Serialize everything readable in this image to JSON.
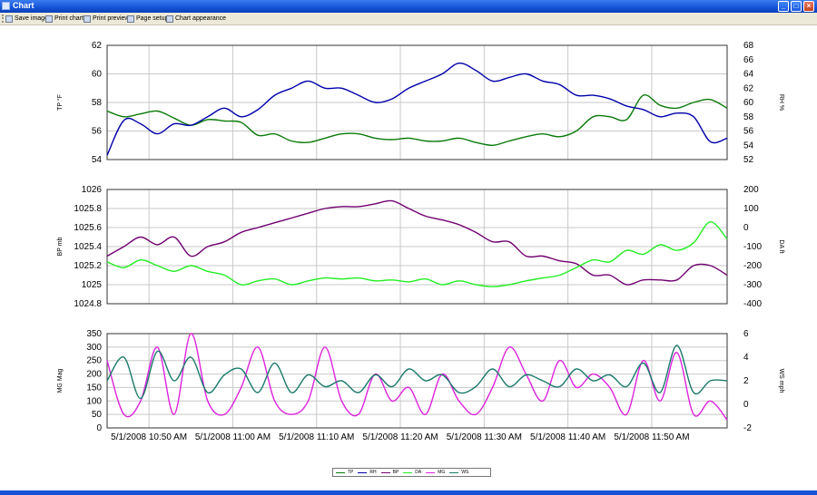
{
  "window": {
    "title": "Chart"
  },
  "toolbar": {
    "items": [
      {
        "label": "Save image",
        "icon": "save-icon"
      },
      {
        "label": "Print chart",
        "icon": "print-icon"
      },
      {
        "label": "Print preview",
        "icon": "print-preview-icon"
      },
      {
        "label": "Page setup",
        "icon": "page-setup-icon"
      },
      {
        "label": "Chart appearance",
        "icon": "chart-appearance-icon"
      }
    ]
  },
  "colors": {
    "TP": "#0a7a0a",
    "RH": "#0000aa",
    "BP": "#700070",
    "DA": "#22ee22",
    "MG": "#dd22dd",
    "WS": "#1a7a6a"
  },
  "chart_data": {
    "type": "line",
    "x_range": [
      "5/1/2008 10:45 AM",
      "5/1/2008 11:59 AM"
    ],
    "x_tick_labels": [
      "5/1/2008 10:50 AM",
      "5/1/2008 11:00 AM",
      "5/1/2008 11:10 AM",
      "5/1/2008 11:20 AM",
      "5/1/2008 11:30 AM",
      "5/1/2008 11:40 AM",
      "5/1/2008 11:50 AM"
    ],
    "x_minutes": [
      0,
      2,
      4,
      6,
      8,
      10,
      12,
      14,
      16,
      18,
      20,
      22,
      24,
      26,
      28,
      30,
      32,
      34,
      36,
      38,
      40,
      42,
      44,
      46,
      48,
      50,
      52,
      54,
      56,
      58,
      60,
      62,
      64,
      66,
      68,
      70,
      72,
      74
    ],
    "legend": [
      "TP",
      "RH",
      "BP",
      "DA",
      "MG",
      "WS"
    ],
    "panels": [
      {
        "left_axis": {
          "label": "TP °F",
          "min": 54,
          "max": 62,
          "ticks": [
            "54",
            "56",
            "58",
            "60",
            "62"
          ]
        },
        "right_axis": {
          "label": "RH %",
          "min": 52,
          "max": 68,
          "ticks": [
            "52",
            "54",
            "56",
            "58",
            "60",
            "62",
            "64",
            "66",
            "68"
          ]
        },
        "series": [
          {
            "name": "TP",
            "axis": "left",
            "values": [
              57.4,
              57.0,
              57.2,
              57.4,
              56.9,
              56.4,
              56.8,
              56.7,
              56.6,
              55.7,
              55.8,
              55.3,
              55.2,
              55.5,
              55.8,
              55.8,
              55.5,
              55.4,
              55.5,
              55.3,
              55.3,
              55.5,
              55.2,
              55.0,
              55.3,
              55.6,
              55.8,
              55.6,
              56.0,
              57.0,
              57.0,
              56.8,
              58.5,
              57.8,
              57.6,
              58.0,
              58.2,
              57.6
            ]
          },
          {
            "name": "RH",
            "axis": "right",
            "values": [
              52.6,
              57.5,
              57.0,
              55.6,
              57.0,
              56.8,
              58.0,
              59.2,
              58.0,
              59.0,
              61.0,
              62.0,
              63.0,
              62.0,
              62.0,
              61.0,
              60.0,
              60.5,
              62.0,
              63.0,
              64.0,
              65.5,
              64.5,
              63.0,
              63.5,
              64.0,
              63.0,
              62.5,
              61.0,
              61.0,
              60.5,
              59.5,
              59.0,
              58.0,
              58.5,
              58.0,
              54.5,
              55.0
            ]
          }
        ]
      },
      {
        "left_axis": {
          "label": "BP mb",
          "min": 1024.8,
          "max": 1026,
          "ticks": [
            "1024.8",
            "1025",
            "1025.2",
            "1025.4",
            "1025.6",
            "1025.8",
            "1026"
          ]
        },
        "right_axis": {
          "label": "DA ft",
          "min": -400,
          "max": 200,
          "ticks": [
            "-400",
            "-300",
            "-200",
            "-100",
            "0",
            "100",
            "200"
          ]
        },
        "series": [
          {
            "name": "BP",
            "axis": "left",
            "values": [
              1025.3,
              1025.4,
              1025.5,
              1025.42,
              1025.5,
              1025.3,
              1025.4,
              1025.45,
              1025.55,
              1025.6,
              1025.65,
              1025.7,
              1025.75,
              1025.8,
              1025.82,
              1025.82,
              1025.85,
              1025.88,
              1025.8,
              1025.72,
              1025.68,
              1025.63,
              1025.55,
              1025.45,
              1025.45,
              1025.3,
              1025.3,
              1025.25,
              1025.22,
              1025.1,
              1025.1,
              1025.0,
              1025.05,
              1025.05,
              1025.05,
              1025.2,
              1025.2,
              1025.1
            ]
          },
          {
            "name": "DA",
            "axis": "right",
            "values": [
              -180,
              -210,
              -170,
              -200,
              -230,
              -200,
              -230,
              -250,
              -300,
              -280,
              -270,
              -300,
              -280,
              -265,
              -270,
              -265,
              -280,
              -275,
              -285,
              -270,
              -300,
              -280,
              -300,
              -310,
              -300,
              -280,
              -265,
              -250,
              -210,
              -170,
              -180,
              -120,
              -140,
              -90,
              -120,
              -80,
              30,
              -60
            ]
          }
        ]
      },
      {
        "left_axis": {
          "label": "MG Mag",
          "min": 0,
          "max": 350,
          "ticks": [
            "0",
            "50",
            "100",
            "150",
            "200",
            "250",
            "300",
            "350"
          ]
        },
        "right_axis": {
          "label": "WS mph",
          "min": -2,
          "max": 6,
          "ticks": [
            "-2",
            "0",
            "2",
            "4",
            "6"
          ]
        },
        "series": [
          {
            "name": "MG",
            "axis": "left",
            "values": [
              250,
              50,
              100,
              300,
              50,
              350,
              100,
              50,
              150,
              300,
              100,
              50,
              100,
              300,
              100,
              50,
              200,
              100,
              150,
              50,
              200,
              100,
              50,
              150,
              300,
              200,
              100,
              250,
              150,
              200,
              150,
              50,
              250,
              100,
              280,
              50,
              100,
              30
            ]
          },
          {
            "name": "WS",
            "axis": "right",
            "values": [
              2.0,
              4.0,
              0.5,
              4.5,
              2.0,
              4.0,
              1.0,
              2.5,
              3.0,
              1.0,
              3.5,
              1.0,
              2.5,
              1.5,
              2.0,
              1.0,
              2.5,
              1.5,
              3.0,
              2.0,
              2.5,
              1.0,
              1.5,
              3.0,
              1.5,
              2.5,
              2.0,
              1.5,
              3.0,
              2.0,
              2.5,
              1.5,
              3.5,
              1.0,
              5.0,
              1.0,
              2.0,
              2.0
            ]
          }
        ]
      }
    ]
  }
}
